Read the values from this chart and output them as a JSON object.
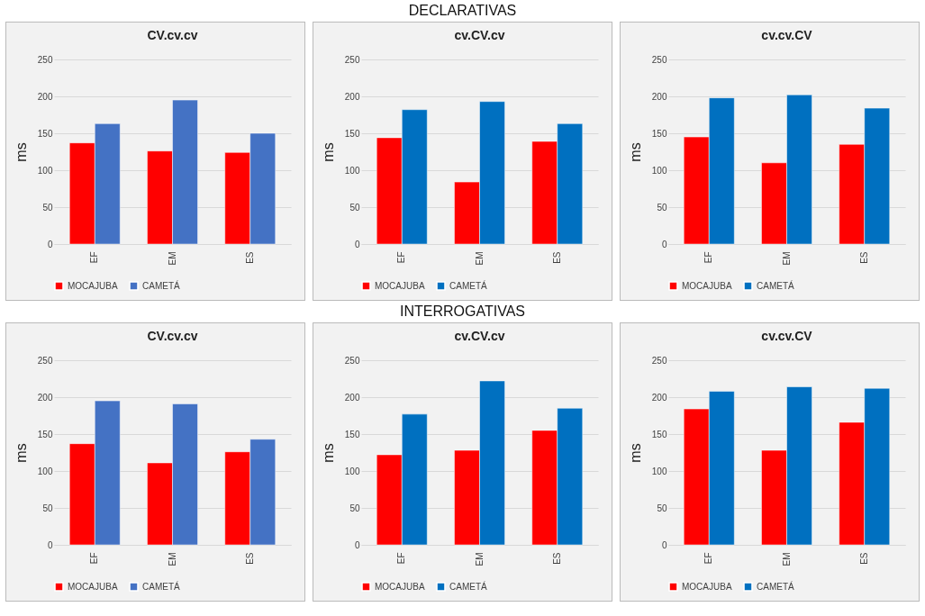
{
  "chart_data": [
    {
      "type": "bar",
      "title": "CV.cv.cv",
      "ylabel": "ms",
      "annotations": [
        "DECLARATIVAS"
      ],
      "categories": [
        "EF",
        "EM",
        "ES"
      ],
      "ylim": [
        0,
        250
      ],
      "yticks": [
        0,
        50,
        100,
        150,
        200,
        250
      ],
      "grid": "y",
      "legend": "bottom",
      "series": [
        {
          "name": "MOCAJUBA",
          "color": "#ff0000",
          "values": [
            137,
            126,
            124
          ]
        },
        {
          "name": "CAMETÁ",
          "color": "#4472c4",
          "values": [
            163,
            195,
            150
          ]
        }
      ]
    },
    {
      "type": "bar",
      "title": "cv.CV.cv",
      "ylabel": "ms",
      "categories": [
        "EF",
        "EM",
        "ES"
      ],
      "ylim": [
        0,
        250
      ],
      "yticks": [
        0,
        50,
        100,
        150,
        200,
        250
      ],
      "grid": "y",
      "legend": "bottom",
      "series": [
        {
          "name": "MOCAJUBA",
          "color": "#ff0000",
          "values": [
            144,
            84,
            139
          ]
        },
        {
          "name": "CAMETÁ",
          "color": "#0070c0",
          "values": [
            182,
            193,
            163
          ]
        }
      ]
    },
    {
      "type": "bar",
      "title": "cv.cv.CV",
      "ylabel": "ms",
      "categories": [
        "EF",
        "EM",
        "ES"
      ],
      "ylim": [
        0,
        250
      ],
      "yticks": [
        0,
        50,
        100,
        150,
        200,
        250
      ],
      "grid": "y",
      "legend": "bottom",
      "series": [
        {
          "name": "MOCAJUBA",
          "color": "#ff0000",
          "values": [
            145,
            110,
            135
          ]
        },
        {
          "name": "CAMETÁ",
          "color": "#0070c0",
          "values": [
            198,
            202,
            184
          ]
        }
      ]
    },
    {
      "type": "bar",
      "title": "CV.cv.cv",
      "ylabel": "ms",
      "annotations": [
        "INTERROGATIVAS"
      ],
      "categories": [
        "EF",
        "EM",
        "ES"
      ],
      "ylim": [
        0,
        250
      ],
      "yticks": [
        0,
        50,
        100,
        150,
        200,
        250
      ],
      "grid": "y",
      "legend": "bottom",
      "series": [
        {
          "name": "MOCAJUBA",
          "color": "#ff0000",
          "values": [
            137,
            111,
            126
          ]
        },
        {
          "name": "CAMETÁ",
          "color": "#4472c4",
          "values": [
            195,
            191,
            143
          ]
        }
      ]
    },
    {
      "type": "bar",
      "title": "cv.CV.cv",
      "ylabel": "ms",
      "categories": [
        "EF",
        "EM",
        "ES"
      ],
      "ylim": [
        0,
        250
      ],
      "yticks": [
        0,
        50,
        100,
        150,
        200,
        250
      ],
      "grid": "y",
      "legend": "bottom",
      "series": [
        {
          "name": "MOCAJUBA",
          "color": "#ff0000",
          "values": [
            122,
            128,
            155
          ]
        },
        {
          "name": "CAMETÁ",
          "color": "#0070c0",
          "values": [
            177,
            222,
            185
          ]
        }
      ]
    },
    {
      "type": "bar",
      "title": "cv.cv.CV",
      "ylabel": "ms",
      "categories": [
        "EF",
        "EM",
        "ES"
      ],
      "ylim": [
        0,
        250
      ],
      "yticks": [
        0,
        50,
        100,
        150,
        200,
        250
      ],
      "grid": "y",
      "legend": "bottom",
      "series": [
        {
          "name": "MOCAJUBA",
          "color": "#ff0000",
          "values": [
            184,
            128,
            166
          ]
        },
        {
          "name": "CAMETÁ",
          "color": "#0070c0",
          "values": [
            208,
            214,
            212
          ]
        }
      ]
    }
  ]
}
